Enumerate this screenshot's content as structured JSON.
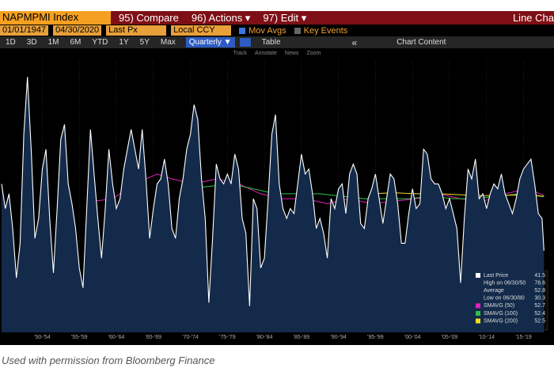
{
  "toolbar": {
    "ticker": "NAPMPMI Index",
    "compare": "95) Compare",
    "actions": "96) Actions ▾",
    "edit": "97) Edit ▾",
    "view": "Line Cha"
  },
  "settings": {
    "start": "01/01/1947",
    "end": "04/30/2020",
    "field": "Last Px",
    "currency": "Local CCY",
    "mov_avgs": "Mov Avgs",
    "key_events": "Key Events"
  },
  "ranges": [
    "1D",
    "3D",
    "1M",
    "6M",
    "YTD",
    "1Y",
    "5Y",
    "Max"
  ],
  "period": "Quarterly ▼",
  "table": "Table",
  "collapse": "«",
  "chart_content": "Chart Content",
  "tools": [
    "Track",
    "Annotate",
    "News",
    "Zoom"
  ],
  "caption": "Used with permission from Bloomberg Finance",
  "chart_data": {
    "type": "line",
    "xlim": [
      1947,
      2020.33
    ],
    "ylim": [
      25,
      80
    ],
    "xticks": [
      {
        "value": 1952.5,
        "label": "'50-'54"
      },
      {
        "value": 1957.5,
        "label": "'55-'59"
      },
      {
        "value": 1962.5,
        "label": "'60-'64"
      },
      {
        "value": 1967.5,
        "label": "'65-'69"
      },
      {
        "value": 1972.5,
        "label": "'70-'74"
      },
      {
        "value": 1977.5,
        "label": "'75-'79"
      },
      {
        "value": 1982.5,
        "label": "'80-'84"
      },
      {
        "value": 1987.5,
        "label": "'85-'89"
      },
      {
        "value": 1992.5,
        "label": "'90-'94"
      },
      {
        "value": 1997.5,
        "label": "'95-'99"
      },
      {
        "value": 2002.5,
        "label": "'00-'04"
      },
      {
        "value": 2007.5,
        "label": "'05-'09"
      },
      {
        "value": 2012.5,
        "label": "'10-'14"
      },
      {
        "value": 2017.5,
        "label": "'15-'19"
      }
    ],
    "series": [
      {
        "name": "Last Price",
        "color": "#ffffff",
        "area_color": "#132a4a",
        "x": [
          1947,
          1947.5,
          1948,
          1948.5,
          1949,
          1949.5,
          1950,
          1950.5,
          1951,
          1951.5,
          1952,
          1952.5,
          1953,
          1953.5,
          1954,
          1954.5,
          1955,
          1955.5,
          1956,
          1956.5,
          1957,
          1957.5,
          1958,
          1958.5,
          1959,
          1959.5,
          1960,
          1960.5,
          1961,
          1961.5,
          1962,
          1962.5,
          1963,
          1963.5,
          1964,
          1964.5,
          1965,
          1965.5,
          1966,
          1966.5,
          1967,
          1967.5,
          1968,
          1968.5,
          1969,
          1969.5,
          1970,
          1970.5,
          1971,
          1971.5,
          1972,
          1972.5,
          1973,
          1973.5,
          1974,
          1974.5,
          1975,
          1975.5,
          1976,
          1976.5,
          1977,
          1977.5,
          1978,
          1978.5,
          1979,
          1979.5,
          1980,
          1980.5,
          1981,
          1981.5,
          1982,
          1982.5,
          1983,
          1983.5,
          1984,
          1984.5,
          1985,
          1985.5,
          1986,
          1986.5,
          1987,
          1987.5,
          1988,
          1988.5,
          1989,
          1989.5,
          1990,
          1990.5,
          1991,
          1991.5,
          1992,
          1992.5,
          1993,
          1993.5,
          1994,
          1994.5,
          1995,
          1995.5,
          1996,
          1996.5,
          1997,
          1997.5,
          1998,
          1998.5,
          1999,
          1999.5,
          2000,
          2000.5,
          2001,
          2001.5,
          2002,
          2002.5,
          2003,
          2003.5,
          2004,
          2004.5,
          2005,
          2005.5,
          2006,
          2006.5,
          2007,
          2007.5,
          2008,
          2008.5,
          2009,
          2009.5,
          2010,
          2010.5,
          2011,
          2011.5,
          2012,
          2012.5,
          2013,
          2013.5,
          2014,
          2014.5,
          2015,
          2015.5,
          2016,
          2016.5,
          2017,
          2017.5,
          2018,
          2018.5,
          2019,
          2019.5,
          2020,
          2020.25
        ],
        "values": [
          55,
          50,
          53,
          46,
          36,
          43,
          65,
          76.6,
          62,
          44,
          48,
          58,
          62,
          48,
          37,
          50,
          64,
          67,
          55,
          51,
          46,
          38,
          34,
          50,
          66,
          57,
          48,
          40,
          50,
          62,
          55,
          50,
          52,
          58,
          62,
          66,
          62,
          58,
          66,
          56,
          44,
          50,
          55,
          56,
          60,
          55,
          46,
          44,
          52,
          56,
          62,
          65,
          71,
          68,
          56,
          48,
          31,
          44,
          59,
          56,
          55,
          57,
          55,
          61,
          58,
          48,
          45,
          30.3,
          52,
          50,
          38,
          40,
          52,
          65,
          69,
          55,
          50,
          48,
          50,
          49,
          55,
          61,
          57,
          58,
          53,
          46,
          48,
          45,
          40,
          52,
          50,
          54,
          55,
          49,
          57,
          59,
          57,
          47,
          46,
          52,
          54,
          57,
          52,
          47,
          52,
          57,
          56,
          51,
          43,
          43,
          49,
          54,
          50,
          51,
          62,
          61,
          56,
          55,
          55,
          53,
          50,
          52,
          49,
          46,
          35,
          48,
          58,
          56,
          60,
          52,
          53,
          50,
          53,
          55,
          54,
          57,
          53,
          51,
          49,
          52,
          56,
          58,
          59,
          60,
          55,
          49,
          48,
          41.5
        ]
      },
      {
        "name": "SMAVG (50)",
        "color": "#e020c0",
        "x": [
          1959.5,
          1962,
          1965,
          1968,
          1970,
          1973,
          1976,
          1979,
          1982,
          1985,
          1988,
          1991,
          1994,
          1997,
          2000,
          2003,
          2006,
          2009,
          2012,
          2015,
          2018,
          2020.25
        ],
        "values": [
          51.5,
          52,
          55,
          57,
          56,
          55,
          56,
          55,
          53,
          52,
          52,
          51,
          52,
          51,
          51.5,
          52,
          53,
          52,
          51.5,
          53,
          54,
          52.7
        ]
      },
      {
        "name": "SMAVG (100)",
        "color": "#2ec24a",
        "x": [
          1972,
          1975,
          1978,
          1981,
          1984,
          1987,
          1990,
          1993,
          1996,
          1999,
          2002,
          2005,
          2008,
          2011,
          2014,
          2017,
          2020.25
        ],
        "values": [
          54,
          54.5,
          55,
          54,
          53,
          53,
          53,
          52.5,
          52,
          52,
          52,
          52.5,
          52,
          52,
          52.5,
          53,
          52.4
        ]
      },
      {
        "name": "SMAVG (200)",
        "color": "#f0e020",
        "x": [
          1997,
          2000,
          2003,
          2006,
          2009,
          2012,
          2015,
          2018,
          2020.25
        ],
        "values": [
          53,
          53.2,
          53,
          53,
          52.8,
          52.6,
          52.7,
          52.8,
          52.5
        ]
      }
    ],
    "stats": [
      {
        "label": "High on 06/30/50",
        "value": 76.6
      },
      {
        "label": "Average",
        "value": 52.8
      },
      {
        "label": "Low on 06/30/80",
        "value": 30.3
      }
    ]
  }
}
